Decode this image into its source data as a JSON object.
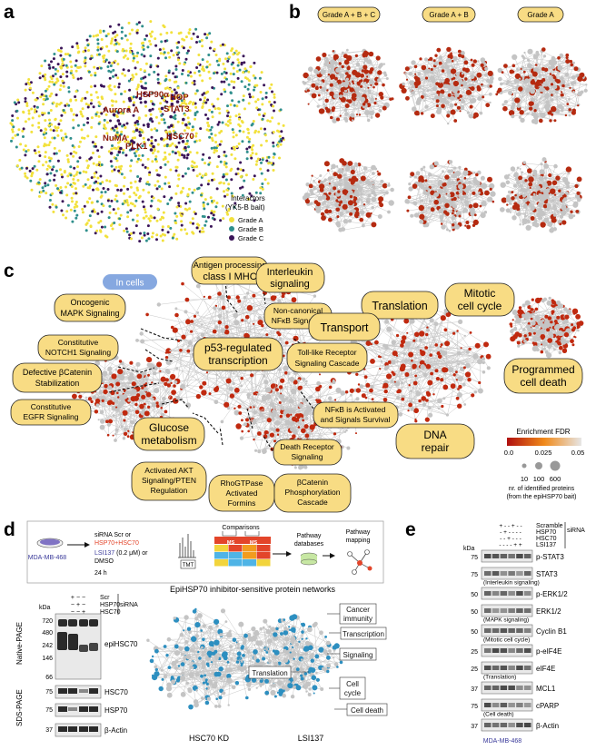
{
  "panels": {
    "a": "a",
    "b": "b",
    "c": "c",
    "d": "d",
    "e": "e"
  },
  "panel_a": {
    "hubs": [
      "HSP90α",
      "HOP",
      "Aurora A",
      "STAT3",
      "NuMA",
      "HSC70",
      "PLK1"
    ],
    "legend_title": "Interactors",
    "legend_subtitle": "(YK5-B bait)",
    "legend_items": [
      {
        "label": "Grade A",
        "color": "#f2e13c"
      },
      {
        "label": "Grade B",
        "color": "#2f8f8c"
      },
      {
        "label": "Grade C",
        "color": "#3a1458"
      }
    ]
  },
  "panel_b": {
    "headers": [
      "Grade A + B + C",
      "Grade A + B",
      "Grade A"
    ]
  },
  "panel_c": {
    "badge": "In cells",
    "pathways": [
      "Antigen processing",
      "class I MHC",
      "Interleukin",
      "signaling",
      "Oncogenic",
      "MAPK Signaling",
      "Non-canonical",
      "NFκB Signaling",
      "Translation",
      "Mitotic",
      "cell cycle",
      "Constitutive",
      "NOTCH1 Signaling",
      "Transport",
      "Toll-like Receptor",
      "Signaling Cascade",
      "Defective βCatenin",
      "Stabilization",
      "p53-regulated",
      "transcription",
      "Programmed",
      "cell death",
      "Constitutive",
      "EGFR Signaling",
      "NFκB is Activated",
      "and Signals Survival",
      "Glucose",
      "metabolism",
      "DNA",
      "repair",
      "Death Receptor",
      "Signaling",
      "Activated AKT",
      "Signaling/PTEN",
      "Regulation",
      "RhoGTPase",
      "Activated",
      "Formins",
      "βCatenin",
      "Phosphorylation",
      "Cascade"
    ],
    "fdr_title": "Enrichment FDR",
    "fdr_ticks": [
      "0.0",
      "0.025",
      "0.05"
    ],
    "size_ticks": [
      "10",
      "100",
      "600"
    ],
    "size_label1": "nr. of identified proteins",
    "size_label2": "(from the epiHSP70 bait)"
  },
  "panel_d": {
    "cell_line": "MDA-MB-468",
    "treat_line1": "siRNA Scr or",
    "treat_line2": "HSP70+HSC70",
    "treat_line3a": "LSI137",
    "treat_line3b": " (0.2 μM) or",
    "treat_line4": "DMSO",
    "treat_line5": "24 h",
    "comparisons": "Comparisons",
    "ms": "MS",
    "tmt": "TMT",
    "pathway_db1": "Pathway",
    "pathway_db2": "databases",
    "pathway_map1": "Pathway",
    "pathway_map2": "mapping",
    "network_title": "EpiHSP70 inhibitor-sensitive protein networks",
    "network_labels": [
      "Cancer",
      "immunity",
      "Transcription",
      "Signaling",
      "Translation",
      "Cell",
      "cycle",
      "Cell death"
    ],
    "kd_label": "HSC70 KD",
    "lsi_label": "LSI137",
    "blot_rows": [
      "Scr",
      "HSP70",
      "HSC70"
    ],
    "sirna": "siRNA",
    "kda": "kDa",
    "native_marks": [
      "720",
      "480",
      "242",
      "146",
      "66"
    ],
    "sds_marks": [
      "75",
      "75",
      "37"
    ],
    "native_label": "Native-PAGE",
    "sds_label": "SDS-PAGE",
    "bands": [
      "epiHSC70",
      "HSC70",
      "HSP70",
      "β-Actin"
    ],
    "signs": [
      "+",
      "-",
      "-",
      "-",
      "+",
      "-",
      "-",
      "-",
      "+",
      "-",
      "-",
      "+"
    ]
  },
  "panel_e": {
    "conditions": [
      "Scramble",
      "HSP70",
      "HSC70",
      "LSI137"
    ],
    "sirna": "siRNA",
    "kda": "kDa",
    "rows": [
      {
        "mw": "75",
        "label": "p-STAT3"
      },
      {
        "mw": "75",
        "label": "STAT3"
      },
      {
        "mw": "",
        "label": "(Interleukin signaling)"
      },
      {
        "mw": "50",
        "label": "p-ERK1/2"
      },
      {
        "mw": "50",
        "label": "ERK1/2"
      },
      {
        "mw": "",
        "label": "(MAPK signaling)"
      },
      {
        "mw": "50",
        "label": "Cyclin B1"
      },
      {
        "mw": "",
        "label": "(Mitotic cell cycle)"
      },
      {
        "mw": "25",
        "label": "p-eIF4E"
      },
      {
        "mw": "25",
        "label": "eIF4E"
      },
      {
        "mw": "",
        "label": "(Translation)"
      },
      {
        "mw": "37",
        "label": "MCL1"
      },
      {
        "mw": "75",
        "label": "cPARP"
      },
      {
        "mw": "",
        "label": "(Cell death)"
      },
      {
        "mw": "37",
        "label": "β-Actin"
      }
    ],
    "cell_line": "MDA-MB-468",
    "sign_rows": [
      "+ - - + - -",
      "- + - - - -",
      "- - + - - -",
      "- - - - + +"
    ]
  }
}
